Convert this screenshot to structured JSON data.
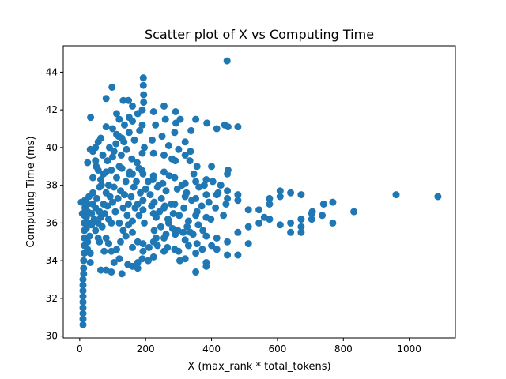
{
  "chart_data": {
    "type": "scatter",
    "title": "Scatter plot of X vs Computing Time",
    "xlabel": "X (max_rank * total_tokens)",
    "ylabel": "Computing Time (ms)",
    "xlim": [
      -50,
      1140
    ],
    "ylim": [
      29.9,
      45.4
    ],
    "xticks": [
      0,
      200,
      400,
      600,
      800,
      1000
    ],
    "yticks": [
      30,
      32,
      34,
      36,
      38,
      40,
      42,
      44
    ],
    "grid": false,
    "marker_color": "#1f77b4",
    "series": [
      {
        "points": [
          [
            447,
            44.6
          ],
          [
            193,
            43.7
          ],
          [
            98,
            43.2
          ],
          [
            193,
            43.3
          ],
          [
            80,
            42.6
          ],
          [
            132,
            42.5
          ],
          [
            148,
            42.5
          ],
          [
            160,
            42.2
          ],
          [
            33,
            41.6
          ],
          [
            256,
            42.2
          ],
          [
            224,
            41.9
          ],
          [
            291,
            41.9
          ],
          [
            305,
            41.5
          ],
          [
            352,
            41.5
          ],
          [
            386,
            41.3
          ],
          [
            440,
            41.2
          ],
          [
            480,
            41.1
          ],
          [
            450,
            41.1
          ],
          [
            416,
            41.0
          ],
          [
            80,
            41.1
          ],
          [
            160,
            41.4
          ],
          [
            112,
            40.7
          ],
          [
            128,
            40.5
          ],
          [
            64,
            40.5
          ],
          [
            40,
            39.8
          ],
          [
            48,
            40.0
          ],
          [
            32,
            39.9
          ],
          [
            56,
            40.3
          ],
          [
            24,
            39.2
          ],
          [
            48,
            39.3
          ],
          [
            400,
            39.0
          ],
          [
            320,
            39.6
          ],
          [
            336,
            39.8
          ],
          [
            290,
            39.3
          ],
          [
            450,
            38.8
          ],
          [
            448,
            38.6
          ],
          [
            384,
            38.3
          ],
          [
            352,
            38.2
          ],
          [
            320,
            38.1
          ],
          [
            288,
            38.4
          ],
          [
            256,
            38.7
          ],
          [
            224,
            38.5
          ],
          [
            192,
            38.6
          ],
          [
            160,
            38.6
          ],
          [
            240,
            38.0
          ],
          [
            208,
            38.2
          ],
          [
            150,
            38.6
          ],
          [
            180,
            38.9
          ],
          [
            120,
            39.0
          ],
          [
            100,
            39.5
          ],
          [
            80,
            38.7
          ],
          [
            640,
            37.6
          ],
          [
            608,
            37.7
          ],
          [
            608,
            37.4
          ],
          [
            672,
            37.5
          ],
          [
            576,
            37.3
          ],
          [
            576,
            37.0
          ],
          [
            544,
            36.7
          ],
          [
            512,
            36.7
          ],
          [
            480,
            37.2
          ],
          [
            480,
            37.5
          ],
          [
            448,
            37.3
          ],
          [
            448,
            37.7
          ],
          [
            416,
            37.5
          ],
          [
            384,
            37.5
          ],
          [
            352,
            37.3
          ],
          [
            320,
            37.4
          ],
          [
            288,
            37.0
          ],
          [
            256,
            36.8
          ],
          [
            224,
            36.5
          ],
          [
            192,
            36.7
          ],
          [
            960,
            37.5
          ],
          [
            1087,
            37.4
          ],
          [
            832,
            36.6
          ],
          [
            768,
            37.1
          ],
          [
            740,
            37.0
          ],
          [
            736,
            36.4
          ],
          [
            706,
            36.6
          ],
          [
            704,
            36.2
          ],
          [
            672,
            36.2
          ],
          [
            672,
            35.8
          ],
          [
            640,
            36.0
          ],
          [
            640,
            35.5
          ],
          [
            608,
            35.9
          ],
          [
            576,
            36.2
          ],
          [
            560,
            36.3
          ],
          [
            544,
            36.0
          ],
          [
            512,
            35.8
          ],
          [
            480,
            35.5
          ],
          [
            448,
            35.0
          ],
          [
            416,
            35.2
          ],
          [
            384,
            36.3
          ],
          [
            352,
            36.4
          ],
          [
            336,
            35.5
          ],
          [
            320,
            35.1
          ],
          [
            290,
            35.4
          ],
          [
            256,
            35.2
          ],
          [
            224,
            35.0
          ],
          [
            384,
            35.3
          ],
          [
            704,
            36.5
          ],
          [
            768,
            36.0
          ],
          [
            672,
            35.5
          ],
          [
            192,
            34.9
          ],
          [
            176,
            35.0
          ],
          [
            160,
            34.7
          ],
          [
            192,
            34.5
          ],
          [
            224,
            34.2
          ],
          [
            256,
            34.5
          ],
          [
            320,
            34.1
          ],
          [
            288,
            34.6
          ],
          [
            352,
            34.4
          ],
          [
            384,
            33.9
          ],
          [
            416,
            34.6
          ],
          [
            448,
            34.3
          ],
          [
            480,
            34.3
          ],
          [
            512,
            34.9
          ],
          [
            208,
            34.0
          ],
          [
            176,
            33.9
          ],
          [
            160,
            33.7
          ],
          [
            128,
            33.3
          ],
          [
            96,
            33.4
          ],
          [
            80,
            33.5
          ],
          [
            64,
            33.5
          ],
          [
            352,
            33.4
          ],
          [
            384,
            33.7
          ],
          [
            304,
            34.0
          ],
          [
            32,
            33.9
          ],
          [
            96,
            34.5
          ],
          [
            112,
            34.6
          ],
          [
            140,
            35.3
          ],
          [
            160,
            35.5
          ],
          [
            60,
            35.0
          ],
          [
            10,
            30.6
          ],
          [
            10,
            30.9
          ],
          [
            10,
            31.2
          ],
          [
            10,
            31.5
          ],
          [
            10,
            31.8
          ],
          [
            10,
            32.1
          ],
          [
            10,
            32.4
          ],
          [
            10,
            32.7
          ],
          [
            10,
            33.0
          ],
          [
            12,
            33.3
          ],
          [
            12,
            33.6
          ],
          [
            12,
            34.0
          ],
          [
            14,
            34.4
          ],
          [
            14,
            34.8
          ],
          [
            14,
            35.2
          ],
          [
            14,
            35.6
          ],
          [
            14,
            36.0
          ],
          [
            14,
            36.4
          ],
          [
            16,
            36.8
          ],
          [
            16,
            37.2
          ],
          [
            20,
            36.3
          ],
          [
            20,
            35.7
          ],
          [
            24,
            35.0
          ],
          [
            24,
            34.6
          ],
          [
            24,
            36.6
          ],
          [
            24,
            37.0
          ],
          [
            28,
            37.4
          ],
          [
            28,
            36.0
          ],
          [
            30,
            35.3
          ],
          [
            32,
            34.4
          ],
          [
            36,
            35.9
          ],
          [
            36,
            36.5
          ],
          [
            40,
            37.0
          ],
          [
            40,
            37.6
          ],
          [
            44,
            36.2
          ],
          [
            48,
            35.6
          ],
          [
            48,
            36.8
          ],
          [
            52,
            37.3
          ],
          [
            56,
            36.0
          ],
          [
            56,
            35.2
          ],
          [
            60,
            36.6
          ],
          [
            60,
            37.9
          ],
          [
            64,
            36.3
          ],
          [
            64,
            38.3
          ],
          [
            68,
            35.8
          ],
          [
            72,
            37.0
          ],
          [
            72,
            38.6
          ],
          [
            76,
            36.5
          ],
          [
            80,
            37.6
          ],
          [
            80,
            35.2
          ],
          [
            84,
            36.9
          ],
          [
            88,
            38.0
          ],
          [
            88,
            36.2
          ],
          [
            92,
            37.4
          ],
          [
            96,
            38.8
          ],
          [
            96,
            36.0
          ],
          [
            100,
            37.1
          ],
          [
            104,
            37.9
          ],
          [
            108,
            36.6
          ],
          [
            112,
            38.4
          ],
          [
            116,
            37.3
          ],
          [
            120,
            36.0
          ],
          [
            124,
            37.7
          ],
          [
            128,
            38.9
          ],
          [
            132,
            36.8
          ],
          [
            136,
            37.5
          ],
          [
            140,
            38.2
          ],
          [
            144,
            36.4
          ],
          [
            148,
            37.0
          ],
          [
            152,
            38.7
          ],
          [
            156,
            37.4
          ],
          [
            160,
            36.1
          ],
          [
            164,
            37.9
          ],
          [
            168,
            36.8
          ],
          [
            172,
            38.2
          ],
          [
            176,
            37.0
          ],
          [
            180,
            36.4
          ],
          [
            184,
            37.6
          ],
          [
            188,
            38.8
          ],
          [
            192,
            37.2
          ],
          [
            196,
            36.0
          ],
          [
            200,
            37.8
          ],
          [
            5,
            37.1
          ],
          [
            8,
            36.5
          ],
          [
            40,
            38.4
          ],
          [
            50,
            39.0
          ],
          [
            56,
            38.8
          ],
          [
            66,
            38.0
          ],
          [
            70,
            39.6
          ],
          [
            84,
            39.3
          ],
          [
            90,
            40.0
          ],
          [
            104,
            39.8
          ],
          [
            110,
            40.2
          ],
          [
            118,
            40.6
          ],
          [
            126,
            39.6
          ],
          [
            134,
            40.3
          ],
          [
            142,
            39.9
          ],
          [
            150,
            40.8
          ],
          [
            158,
            39.4
          ],
          [
            166,
            40.4
          ],
          [
            174,
            39.2
          ],
          [
            182,
            40.9
          ],
          [
            190,
            39.7
          ],
          [
            196,
            40.0
          ],
          [
            100,
            41.0
          ],
          [
            112,
            41.8
          ],
          [
            120,
            41.5
          ],
          [
            136,
            41.2
          ],
          [
            150,
            41.6
          ],
          [
            176,
            41.8
          ],
          [
            190,
            42.0
          ],
          [
            190,
            41.2
          ],
          [
            194,
            42.4
          ],
          [
            194,
            42.8
          ],
          [
            214,
            37.5
          ],
          [
            218,
            36.9
          ],
          [
            222,
            38.3
          ],
          [
            226,
            37.1
          ],
          [
            232,
            36.3
          ],
          [
            236,
            37.9
          ],
          [
            242,
            36.6
          ],
          [
            248,
            37.3
          ],
          [
            252,
            38.1
          ],
          [
            258,
            36.9
          ],
          [
            262,
            37.7
          ],
          [
            268,
            36.2
          ],
          [
            272,
            38.5
          ],
          [
            278,
            37.0
          ],
          [
            284,
            36.5
          ],
          [
            296,
            37.8
          ],
          [
            302,
            36.4
          ],
          [
            310,
            38.0
          ],
          [
            316,
            36.8
          ],
          [
            324,
            37.6
          ],
          [
            330,
            36.1
          ],
          [
            340,
            37.2
          ],
          [
            346,
            38.6
          ],
          [
            356,
            36.6
          ],
          [
            362,
            37.9
          ],
          [
            370,
            36.9
          ],
          [
            378,
            38.0
          ],
          [
            392,
            37.1
          ],
          [
            398,
            36.2
          ],
          [
            404,
            38.2
          ],
          [
            412,
            36.8
          ],
          [
            420,
            37.6
          ],
          [
            428,
            38.0
          ],
          [
            436,
            36.4
          ],
          [
            444,
            37.0
          ],
          [
            220,
            40.4
          ],
          [
            224,
            39.7
          ],
          [
            230,
            41.2
          ],
          [
            250,
            40.6
          ],
          [
            256,
            39.6
          ],
          [
            260,
            41.5
          ],
          [
            270,
            40.1
          ],
          [
            280,
            39.4
          ],
          [
            288,
            40.8
          ],
          [
            292,
            41.3
          ],
          [
            300,
            39.9
          ],
          [
            320,
            40.3
          ],
          [
            334,
            39.3
          ],
          [
            338,
            40.9
          ],
          [
            356,
            39.0
          ],
          [
            226,
            35.6
          ],
          [
            232,
            35.2
          ],
          [
            246,
            35.8
          ],
          [
            262,
            35.4
          ],
          [
            270,
            36.0
          ],
          [
            282,
            35.7
          ],
          [
            298,
            35.6
          ],
          [
            314,
            35.5
          ],
          [
            326,
            35.8
          ],
          [
            344,
            35.4
          ],
          [
            360,
            35.9
          ],
          [
            374,
            35.6
          ],
          [
            210,
            34.7
          ],
          [
            236,
            34.8
          ],
          [
            266,
            34.7
          ],
          [
            300,
            34.5
          ],
          [
            330,
            34.8
          ],
          [
            356,
            34.9
          ],
          [
            372,
            34.6
          ],
          [
            400,
            34.8
          ],
          [
            176,
            33.6
          ],
          [
            190,
            34.1
          ],
          [
            146,
            33.8
          ],
          [
            120,
            34.1
          ],
          [
            104,
            33.9
          ],
          [
            74,
            34.5
          ],
          [
            88,
            34.9
          ],
          [
            124,
            35.0
          ],
          [
            132,
            35.6
          ],
          [
            148,
            35.9
          ]
        ]
      }
    ]
  }
}
